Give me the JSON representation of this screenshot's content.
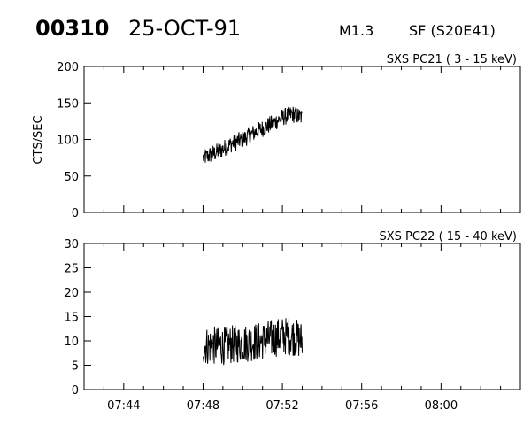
{
  "header": {
    "event_id": "00310",
    "date": "25-OCT-91",
    "flare_class": "M1.3",
    "location": "SF (S20E41)"
  },
  "chart_data": [
    {
      "type": "line",
      "title": "SXS PC21  (  3 - 15 keV)",
      "ylabel": "CTS/SEC",
      "xlabel": "",
      "xlim": [
        "07:42",
        "08:04"
      ],
      "ylim": [
        0,
        200
      ],
      "yticks": [
        0,
        50,
        100,
        150,
        200
      ],
      "xticks": [
        "07:44",
        "07:48",
        "07:52",
        "07:56",
        "08:00"
      ],
      "series": [
        {
          "x": [
            "07:48:00",
            "07:48:30",
            "07:49:00",
            "07:49:30",
            "07:50:00",
            "07:50:30",
            "07:51:00",
            "07:51:30",
            "07:52:00",
            "07:52:30",
            "07:53:00"
          ],
          "values": [
            75,
            80,
            87,
            95,
            100,
            108,
            115,
            122,
            130,
            135,
            130
          ],
          "noise": 12
        }
      ]
    },
    {
      "type": "line",
      "title": "SXS PC22  ( 15 - 40 keV)",
      "ylabel": "",
      "xlabel": "",
      "xlim": [
        "07:42",
        "08:04"
      ],
      "ylim": [
        0,
        30
      ],
      "yticks": [
        0,
        5,
        10,
        15,
        20,
        25,
        30
      ],
      "xticks": [
        "07:44",
        "07:48",
        "07:52",
        "07:56",
        "08:00"
      ],
      "series": [
        {
          "x": [
            "07:48:00",
            "07:49:00",
            "07:50:00",
            "07:51:00",
            "07:52:00",
            "07:52:30",
            "07:53:00"
          ],
          "values": [
            9,
            9,
            9.5,
            10,
            11,
            11,
            10
          ],
          "noise": 4
        }
      ]
    }
  ]
}
